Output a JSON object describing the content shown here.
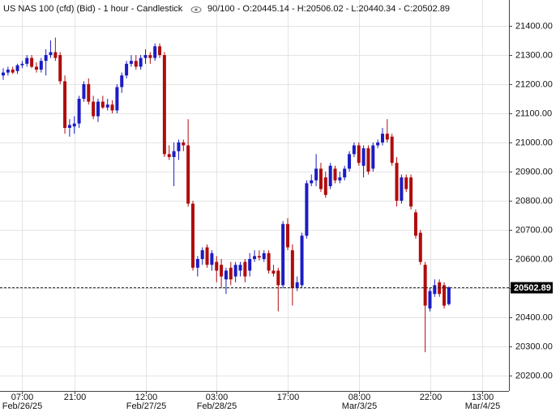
{
  "chart_data": {
    "type": "candlestick",
    "title": "US NAS 100 (cfd) (Bid) - 1 hour - Candlestick",
    "info": "90/100 - O:20445.14 - H:20506.02 - L:20440.34 - C:20502.89",
    "up_color": "#1c1cc4",
    "down_color": "#b00c0c",
    "grid": true,
    "ylim": [
      20147,
      21489
    ],
    "yticks": [
      {
        "value": 20200,
        "label": "20200.00"
      },
      {
        "value": 20300,
        "label": "20300.00"
      },
      {
        "value": 20400,
        "label": "20400.00"
      },
      {
        "value": 20500,
        "label": "20500.00"
      },
      {
        "value": 20600,
        "label": "20600.00"
      },
      {
        "value": 20700,
        "label": "20700.00"
      },
      {
        "value": 20800,
        "label": "20800.00"
      },
      {
        "value": 20900,
        "label": "20900.00"
      },
      {
        "value": 21000,
        "label": "21000.00"
      },
      {
        "value": 21100,
        "label": "21100.00"
      },
      {
        "value": 21200,
        "label": "21200.00"
      },
      {
        "value": 21300,
        "label": "21300.00"
      },
      {
        "value": 21400,
        "label": "21400.00"
      }
    ],
    "categories": [
      null,
      null,
      null,
      null,
      "07:00",
      null,
      null,
      null,
      null,
      null,
      null,
      null,
      null,
      null,
      null,
      "21:00",
      null,
      null,
      null,
      null,
      null,
      null,
      null,
      null,
      null,
      null,
      null,
      null,
      null,
      null,
      "12:00",
      null,
      null,
      null,
      null,
      null,
      null,
      null,
      null,
      null,
      null,
      null,
      null,
      null,
      null,
      "03:00",
      null,
      null,
      null,
      null,
      null,
      null,
      null,
      null,
      null,
      null,
      null,
      null,
      null,
      null,
      "17:00",
      null,
      null,
      null,
      null,
      null,
      null,
      null,
      null,
      null,
      null,
      null,
      null,
      null,
      null,
      "08:00",
      null,
      null,
      null,
      null,
      null,
      null,
      null,
      null,
      null,
      null,
      null,
      null,
      null,
      null,
      "22:00",
      null,
      null,
      null,
      null,
      null,
      null,
      null,
      null,
      null,
      null,
      "13:00"
    ],
    "dates": [
      null,
      null,
      null,
      null,
      "Feb/26/25",
      null,
      null,
      null,
      null,
      null,
      null,
      null,
      null,
      null,
      null,
      null,
      null,
      null,
      null,
      null,
      null,
      null,
      null,
      null,
      null,
      null,
      null,
      null,
      null,
      null,
      "Feb/27/25",
      null,
      null,
      null,
      null,
      null,
      null,
      null,
      null,
      null,
      null,
      null,
      null,
      null,
      null,
      "Feb/28/25",
      null,
      null,
      null,
      null,
      null,
      null,
      null,
      null,
      null,
      null,
      null,
      null,
      null,
      null,
      null,
      null,
      null,
      null,
      null,
      null,
      null,
      null,
      null,
      null,
      null,
      null,
      null,
      null,
      null,
      "Mar/3/25",
      null,
      null,
      null,
      null,
      null,
      null,
      null,
      null,
      null,
      null,
      null,
      null,
      null,
      null,
      null,
      null,
      null,
      null,
      null,
      null,
      null,
      null,
      null,
      null,
      null,
      "Mar/4/25"
    ],
    "open": [
      21230,
      21240,
      21250,
      21245,
      21265,
      21270,
      21290,
      21260,
      21250,
      21280,
      21300,
      21310,
      21300,
      21210,
      21050,
      21055,
      21065,
      21150,
      21200,
      21140,
      21090,
      21140,
      21120,
      21130,
      21110,
      21190,
      21230,
      21270,
      21280,
      21260,
      21290,
      21300,
      21290,
      21330,
      21300,
      20960,
      20950,
      20970,
      21000,
      20990,
      20790,
      20570,
      20600,
      20640,
      20580,
      20590,
      20580,
      20530,
      20570,
      20540,
      20560,
      20590,
      20560,
      20600,
      20610,
      20600,
      20620,
      20560,
      20560,
      20510,
      20720,
      20630,
      20500,
      20510,
      20680,
      20860,
      20870,
      20910,
      20880,
      20850,
      20910,
      20870,
      20880,
      20910,
      20960,
      20990,
      20920,
      20980,
      20910,
      20990,
      21000,
      21030,
      21020,
      20930,
      20800,
      20880,
      20880,
      20760,
      20690,
      20580,
      20430,
      20480,
      20520,
      20510,
      20445.14,
      null,
      null,
      null,
      null,
      null,
      null,
      null
    ],
    "high": [
      21255,
      21260,
      21260,
      21270,
      21280,
      21300,
      21300,
      21275,
      21290,
      21320,
      21350,
      21360,
      21310,
      21230,
      21080,
      21090,
      21160,
      21210,
      21220,
      21160,
      21150,
      21160,
      21150,
      21145,
      21200,
      21240,
      21280,
      21300,
      21300,
      21300,
      21320,
      21310,
      21340,
      21340,
      21310,
      20990,
      21000,
      21010,
      21010,
      21080,
      20800,
      20610,
      20640,
      20650,
      20630,
      20610,
      20600,
      20570,
      20590,
      20590,
      20590,
      20600,
      20620,
      20630,
      20630,
      20630,
      20630,
      20580,
      20570,
      20730,
      20740,
      20650,
      20540,
      20690,
      20870,
      20890,
      20960,
      20930,
      20900,
      20930,
      20920,
      20900,
      20920,
      20970,
      21000,
      21000,
      20990,
      20990,
      21000,
      21010,
      21050,
      21080,
      21030,
      20950,
      20890,
      20890,
      20890,
      20770,
      20700,
      20590,
      20500,
      20530,
      20530,
      20520,
      20506.02,
      null,
      null,
      null,
      null,
      null,
      null,
      null
    ],
    "low": [
      21215,
      21230,
      21235,
      21235,
      21255,
      21260,
      21255,
      21240,
      21240,
      21230,
      21290,
      21280,
      21200,
      21030,
      21020,
      21030,
      21050,
      21140,
      21130,
      21080,
      21070,
      21115,
      21110,
      21100,
      21100,
      21170,
      21220,
      21260,
      21250,
      21250,
      21270,
      21270,
      21280,
      21290,
      20950,
      20940,
      20850,
      20940,
      20970,
      20780,
      20560,
      20540,
      20580,
      20570,
      20560,
      20520,
      20500,
      20480,
      20510,
      20520,
      20540,
      20520,
      20540,
      20590,
      20595,
      20590,
      20550,
      20540,
      20420,
      20500,
      20630,
      20440,
      20490,
      20500,
      20670,
      20850,
      20850,
      20830,
      20810,
      20840,
      20860,
      20860,
      20870,
      20900,
      20950,
      20920,
      20880,
      20890,
      20900,
      20980,
      20990,
      21000,
      20920,
      20780,
      20790,
      20830,
      20770,
      20670,
      20580,
      20280,
      20420,
      20470,
      20470,
      20430,
      20440.34,
      null,
      null,
      null,
      null,
      null,
      null,
      null
    ],
    "close": [
      21240,
      21250,
      21240,
      21265,
      21270,
      21290,
      21260,
      21250,
      21280,
      21300,
      21310,
      21290,
      21210,
      21050,
      21060,
      21065,
      21150,
      21200,
      21140,
      21090,
      21140,
      21120,
      21130,
      21110,
      21190,
      21230,
      21270,
      21280,
      21260,
      21290,
      21300,
      21290,
      21330,
      21300,
      20960,
      20950,
      20970,
      21000,
      20990,
      20790,
      20570,
      20600,
      20630,
      20580,
      20620,
      20560,
      20540,
      20560,
      20530,
      20580,
      20580,
      20540,
      20600,
      20610,
      20605,
      20620,
      20560,
      20550,
      20510,
      20720,
      20640,
      20500,
      20520,
      20680,
      20860,
      20870,
      20910,
      20840,
      20820,
      20920,
      20870,
      20880,
      20910,
      20960,
      20990,
      20930,
      20980,
      20900,
      20990,
      21000,
      21030,
      21010,
      20930,
      20800,
      20880,
      20840,
      20780,
      20680,
      20590,
      20440,
      20490,
      20510,
      20480,
      20440,
      20502.89,
      null,
      null,
      null,
      null,
      null,
      null,
      null
    ]
  }
}
